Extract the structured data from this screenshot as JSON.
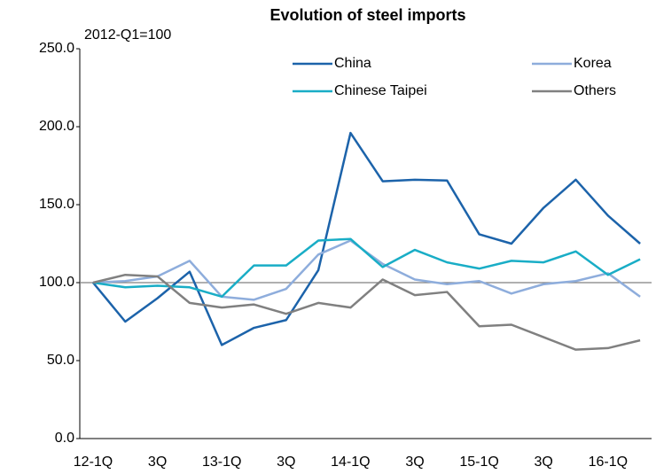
{
  "chart_data": {
    "type": "line",
    "title": "Evolution of steel imports",
    "subtitle": "2012-Q1=100",
    "categories": [
      "12-1Q",
      null,
      "3Q",
      null,
      "13-1Q",
      null,
      "3Q",
      null,
      "14-1Q",
      null,
      "3Q",
      null,
      "15-1Q",
      null,
      "3Q",
      null,
      "16-1Q",
      null
    ],
    "series": [
      {
        "name": "China",
        "color": "#1c63aa",
        "values": [
          100,
          75,
          90,
          107,
          60,
          71,
          76,
          108,
          196,
          165,
          166,
          165.5,
          131,
          125,
          148,
          166,
          143,
          125
        ]
      },
      {
        "name": "Korea",
        "color": "#8eaddc",
        "values": [
          100,
          101,
          104,
          114,
          91,
          89,
          96,
          118,
          127,
          112,
          102,
          99,
          101,
          93,
          99,
          101,
          106,
          91
        ]
      },
      {
        "name": "Chinese Taipei",
        "color": "#19adc6",
        "values": [
          100,
          97,
          98,
          97,
          91,
          111,
          111,
          127,
          128,
          110,
          121,
          113,
          109,
          114,
          113,
          120,
          105,
          115
        ]
      },
      {
        "name": "Others",
        "color": "#808080",
        "values": [
          100,
          105,
          104,
          87,
          84,
          86,
          80,
          87,
          84,
          102,
          92,
          94,
          72,
          73,
          65,
          57,
          58,
          63
        ]
      }
    ],
    "ylim": [
      0,
      250
    ],
    "yticks": [
      {
        "value": 0,
        "label": "0.0"
      },
      {
        "value": 50,
        "label": "50.0"
      },
      {
        "value": 100,
        "label": "100.0"
      },
      {
        "value": 150,
        "label": "150.0"
      },
      {
        "value": 200,
        "label": "200.0"
      },
      {
        "value": 250,
        "label": "250.0"
      }
    ],
    "hline": 100,
    "grid": false
  }
}
